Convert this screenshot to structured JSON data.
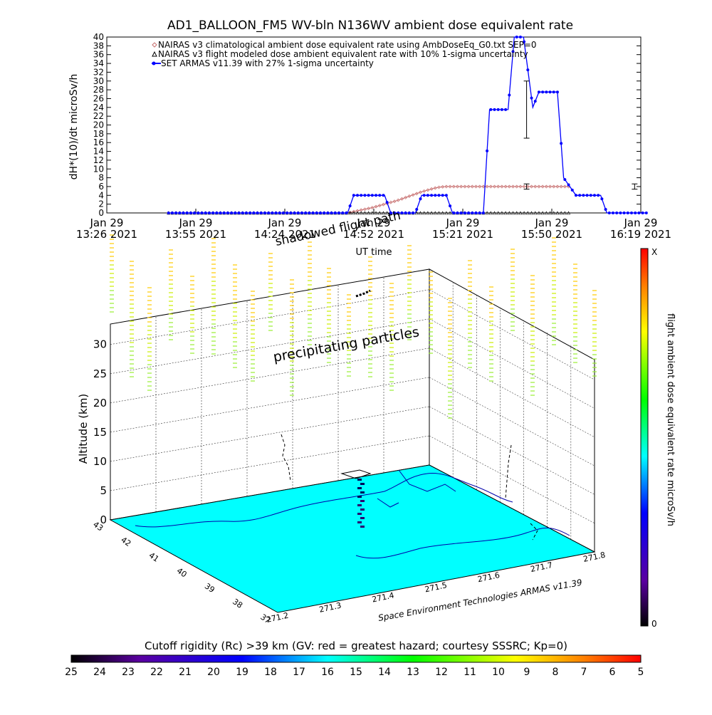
{
  "chart_data": [
    {
      "type": "line",
      "title": "AD1_BALLOON_FM5 WV-bln N136WV ambient dose equivalent rate",
      "xlabel": "UT time",
      "ylabel": "dH*(10)/dt microSv/h",
      "ylim": [
        0,
        40
      ],
      "y_ticks": [
        0,
        2,
        4,
        6,
        8,
        10,
        12,
        14,
        16,
        18,
        20,
        22,
        24,
        26,
        28,
        30,
        32,
        34,
        36,
        38,
        40
      ],
      "x_tick_labels": [
        {
          "l1": "Jan 29",
          "l2": "13:26 2021"
        },
        {
          "l1": "Jan 29",
          "l2": "13:55 2021"
        },
        {
          "l1": "Jan 29",
          "l2": "14:24 2021"
        },
        {
          "l1": "Jan 29",
          "l2": "14:52 2021"
        },
        {
          "l1": "Jan 29",
          "l2": "15:21 2021"
        },
        {
          "l1": "Jan 29",
          "l2": "15:50 2021"
        },
        {
          "l1": "Jan 29",
          "l2": "16:19 2021"
        }
      ],
      "x_minutes_range": [
        0,
        173
      ],
      "legend": [
        "NAIRAS v3 climatological ambient dose equivalent rate using AmbDoseEq_G0.txt SEP=0",
        "NAIRAS v3 flight modeled dose ambient equivalent rate with 10% 1-sigma uncertainty",
        "SET ARMAS v11.39 with 27% 1-sigma uncertainty"
      ],
      "legend_placement": "top-left",
      "series": [
        {
          "name": "NAIRAS v3 climatological ambient dose equivalent rate using AmbDoseEq_G0.txt SEP=0",
          "color": "#c87070",
          "x_minutes": [
            20,
            78,
            80,
            82,
            84,
            86,
            88,
            90,
            92,
            94,
            96,
            98,
            100,
            102,
            104,
            106,
            108,
            110,
            112,
            150
          ],
          "values": [
            0,
            0,
            0.3,
            0.6,
            0.9,
            1.2,
            1.6,
            2.0,
            2.4,
            2.8,
            3.3,
            3.8,
            4.3,
            4.8,
            5.2,
            5.6,
            5.9,
            6.0,
            6.0,
            6.0
          ]
        },
        {
          "name": "NAIRAS v3 flight modeled dose ambient equivalent rate with 10% 1-sigma uncertainty",
          "color": "#000000",
          "x_minutes": [
            20,
            150
          ],
          "values": [
            0,
            0
          ]
        },
        {
          "name": "SET ARMAS v11.39 with 27% 1-sigma uncertainty",
          "color": "#0000ff",
          "x_minutes": [
            20,
            78,
            80,
            90,
            92,
            100,
            102,
            110,
            112,
            122,
            124,
            130,
            132,
            135,
            138,
            140,
            142,
            146,
            148,
            152,
            154,
            160,
            162,
            175
          ],
          "values": [
            0,
            0,
            4,
            4,
            0,
            0,
            4,
            4,
            0,
            0,
            23.5,
            23.5,
            40,
            40,
            24,
            27.5,
            27.5,
            27.5,
            8,
            4,
            4,
            4,
            0,
            0
          ]
        }
      ],
      "error_bars": [
        {
          "x_minutes": 136,
          "y": 23.5,
          "lo": 17,
          "hi": 30
        },
        {
          "x_minutes": 136,
          "y": 6.0,
          "lo": 5.4,
          "hi": 6.6
        },
        {
          "x_minutes": 171,
          "y": 6.0,
          "lo": 5.4,
          "hi": 6.6
        }
      ]
    },
    {
      "type": "scatter",
      "subtype": "3d-flight-path",
      "zlabel": "Altitude (km)",
      "z_ticks": [
        0,
        5,
        10,
        15,
        20,
        25,
        30
      ],
      "lat_ticks": [
        "37",
        "38",
        "39",
        "40",
        "41",
        "42",
        "43"
      ],
      "lon_ticks": [
        "271.2",
        "271.3",
        "271.4",
        "271.5",
        "271.6",
        "271.7",
        "271.8"
      ],
      "annotations": [
        "precipitating particles",
        "shadowed flight path"
      ],
      "credit": "Space Environment Technologies ARMAS v11.39",
      "surface_color": "#00ffff",
      "colorbar": {
        "label": "flight ambient dose equivalent rate microSv/h",
        "top_label": "X",
        "bottom_label": "0"
      }
    },
    {
      "type": "heatmap",
      "subtype": "colorbar",
      "title": "Cutoff rigidity (Rc) >39 km (GV: red = greatest hazard; courtesy SSSRC; Kp=0)",
      "ticks": [
        "25",
        "24",
        "23",
        "22",
        "21",
        "20",
        "19",
        "18",
        "17",
        "16",
        "15",
        "14",
        "13",
        "12",
        "11",
        "10",
        "9",
        "8",
        "7",
        "6",
        "5"
      ]
    }
  ]
}
